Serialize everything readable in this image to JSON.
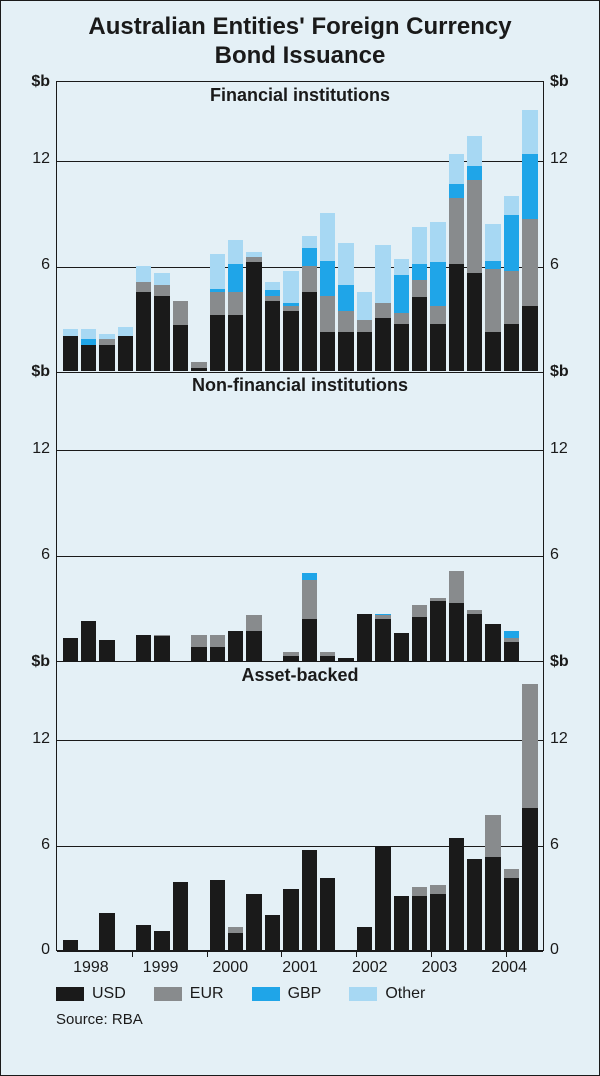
{
  "title_line1": "Australian Entities' Foreign Currency",
  "title_line2": "Bond Issuance",
  "title_fontsize": 24,
  "background": "#e4f0f6",
  "axis_color": "#1a1a1a",
  "series": {
    "usd": {
      "label": "USD",
      "color": "#1a1a1a"
    },
    "eur": {
      "label": "EUR",
      "color": "#888b8d"
    },
    "gbp": {
      "label": "GBP",
      "color": "#1fa5e8"
    },
    "other": {
      "label": "Other",
      "color": "#a7d8f3"
    }
  },
  "y_unit": "$b",
  "y_max": 16.5,
  "y_ticks": [
    6,
    12
  ],
  "x_year_labels": [
    "1998",
    "1999",
    "2000",
    "2001",
    "2002",
    "2003",
    "2004"
  ],
  "bottom_y_ticks": [
    0,
    6,
    12
  ],
  "panels": [
    {
      "title": "Financial institutions",
      "title_fontsize": 18,
      "has_bottom_axis": false,
      "bars": [
        {
          "usd": 2.0,
          "eur": 0.0,
          "gbp": 0.0,
          "other": 0.4
        },
        {
          "usd": 1.5,
          "eur": 0.0,
          "gbp": 0.3,
          "other": 0.6
        },
        {
          "usd": 1.5,
          "eur": 0.3,
          "gbp": 0.0,
          "other": 0.3
        },
        {
          "usd": 2.0,
          "eur": 0.0,
          "gbp": 0.0,
          "other": 0.5
        },
        {
          "usd": 4.5,
          "eur": 0.6,
          "gbp": 0.0,
          "other": 0.9
        },
        {
          "usd": 4.3,
          "eur": 0.6,
          "gbp": 0.0,
          "other": 0.7
        },
        {
          "usd": 2.6,
          "eur": 1.4,
          "gbp": 0.0,
          "other": 0.0
        },
        {
          "usd": 0.2,
          "eur": 0.3,
          "gbp": 0.0,
          "other": 0.0
        },
        {
          "usd": 3.2,
          "eur": 1.3,
          "gbp": 0.2,
          "other": 2.0
        },
        {
          "usd": 3.2,
          "eur": 1.3,
          "gbp": 1.6,
          "other": 1.4
        },
        {
          "usd": 6.2,
          "eur": 0.3,
          "gbp": 0.0,
          "other": 0.3
        },
        {
          "usd": 4.0,
          "eur": 0.3,
          "gbp": 0.3,
          "other": 0.5
        },
        {
          "usd": 3.4,
          "eur": 0.3,
          "gbp": 0.2,
          "other": 1.8
        },
        {
          "usd": 4.5,
          "eur": 1.5,
          "gbp": 1.0,
          "other": 0.7
        },
        {
          "usd": 2.2,
          "eur": 2.1,
          "gbp": 2.0,
          "other": 2.7
        },
        {
          "usd": 2.2,
          "eur": 1.2,
          "gbp": 1.5,
          "other": 2.4
        },
        {
          "usd": 2.2,
          "eur": 0.7,
          "gbp": 0.0,
          "other": 1.6
        },
        {
          "usd": 3.0,
          "eur": 0.9,
          "gbp": 0.0,
          "other": 3.3
        },
        {
          "usd": 2.7,
          "eur": 0.6,
          "gbp": 2.2,
          "other": 0.9
        },
        {
          "usd": 4.2,
          "eur": 1.0,
          "gbp": 0.9,
          "other": 2.1
        },
        {
          "usd": 2.7,
          "eur": 1.0,
          "gbp": 2.5,
          "other": 2.3
        },
        {
          "usd": 6.1,
          "eur": 3.8,
          "gbp": 0.8,
          "other": 1.7
        },
        {
          "usd": 5.6,
          "eur": 5.3,
          "gbp": 0.8,
          "other": 1.7
        },
        {
          "usd": 2.2,
          "eur": 3.6,
          "gbp": 0.5,
          "other": 2.1
        },
        {
          "usd": 2.7,
          "eur": 3.0,
          "gbp": 3.2,
          "other": 1.1
        },
        {
          "usd": 3.7,
          "eur": 5.0,
          "gbp": 3.7,
          "other": 2.5
        }
      ]
    },
    {
      "title": "Non-financial institutions",
      "title_fontsize": 18,
      "has_bottom_axis": false,
      "bars": [
        {
          "usd": 1.3,
          "eur": 0.0,
          "gbp": 0.0,
          "other": 0.0
        },
        {
          "usd": 2.3,
          "eur": 0.0,
          "gbp": 0.0,
          "other": 0.0
        },
        {
          "usd": 1.2,
          "eur": 0.0,
          "gbp": 0.0,
          "other": 0.0
        },
        {
          "usd": 0.0,
          "eur": 0.0,
          "gbp": 0.0,
          "other": 0.0
        },
        {
          "usd": 1.5,
          "eur": 0.0,
          "gbp": 0.0,
          "other": 0.0
        },
        {
          "usd": 1.4,
          "eur": 0.1,
          "gbp": 0.0,
          "other": 0.0
        },
        {
          "usd": 0.0,
          "eur": 0.0,
          "gbp": 0.0,
          "other": 0.0
        },
        {
          "usd": 0.8,
          "eur": 0.7,
          "gbp": 0.0,
          "other": 0.0
        },
        {
          "usd": 0.8,
          "eur": 0.7,
          "gbp": 0.0,
          "other": 0.0
        },
        {
          "usd": 1.7,
          "eur": 0.0,
          "gbp": 0.0,
          "other": 0.0
        },
        {
          "usd": 1.7,
          "eur": 0.9,
          "gbp": 0.0,
          "other": 0.0
        },
        {
          "usd": 0.0,
          "eur": 0.0,
          "gbp": 0.0,
          "other": 0.0
        },
        {
          "usd": 0.3,
          "eur": 0.2,
          "gbp": 0.0,
          "other": 0.0
        },
        {
          "usd": 2.4,
          "eur": 2.2,
          "gbp": 0.4,
          "other": 0.0
        },
        {
          "usd": 0.3,
          "eur": 0.2,
          "gbp": 0.0,
          "other": 0.0
        },
        {
          "usd": 0.2,
          "eur": 0.0,
          "gbp": 0.0,
          "other": 0.0
        },
        {
          "usd": 2.7,
          "eur": 0.0,
          "gbp": 0.0,
          "other": 0.0
        },
        {
          "usd": 2.4,
          "eur": 0.2,
          "gbp": 0.1,
          "other": 0.0
        },
        {
          "usd": 1.6,
          "eur": 0.0,
          "gbp": 0.0,
          "other": 0.0
        },
        {
          "usd": 2.5,
          "eur": 0.7,
          "gbp": 0.0,
          "other": 0.0
        },
        {
          "usd": 3.4,
          "eur": 0.2,
          "gbp": 0.0,
          "other": 0.0
        },
        {
          "usd": 3.3,
          "eur": 1.8,
          "gbp": 0.0,
          "other": 0.0
        },
        {
          "usd": 2.7,
          "eur": 0.2,
          "gbp": 0.0,
          "other": 0.0
        },
        {
          "usd": 2.1,
          "eur": 0.0,
          "gbp": 0.0,
          "other": 0.0
        },
        {
          "usd": 1.1,
          "eur": 0.2,
          "gbp": 0.4,
          "other": 0.0
        },
        {
          "usd": 0.0,
          "eur": 0.0,
          "gbp": 0.0,
          "other": 0.0
        }
      ]
    },
    {
      "title": "Asset-backed",
      "title_fontsize": 18,
      "has_bottom_axis": true,
      "bars": [
        {
          "usd": 0.6,
          "eur": 0.0,
          "gbp": 0.0,
          "other": 0.0
        },
        {
          "usd": 0.0,
          "eur": 0.0,
          "gbp": 0.0,
          "other": 0.0
        },
        {
          "usd": 2.1,
          "eur": 0.0,
          "gbp": 0.0,
          "other": 0.0
        },
        {
          "usd": 0.0,
          "eur": 0.0,
          "gbp": 0.0,
          "other": 0.0
        },
        {
          "usd": 1.4,
          "eur": 0.0,
          "gbp": 0.0,
          "other": 0.0
        },
        {
          "usd": 1.1,
          "eur": 0.0,
          "gbp": 0.0,
          "other": 0.0
        },
        {
          "usd": 3.9,
          "eur": 0.0,
          "gbp": 0.0,
          "other": 0.0
        },
        {
          "usd": 0.0,
          "eur": 0.0,
          "gbp": 0.0,
          "other": 0.0
        },
        {
          "usd": 4.0,
          "eur": 0.0,
          "gbp": 0.0,
          "other": 0.0
        },
        {
          "usd": 1.0,
          "eur": 0.3,
          "gbp": 0.0,
          "other": 0.0
        },
        {
          "usd": 3.2,
          "eur": 0.0,
          "gbp": 0.0,
          "other": 0.0
        },
        {
          "usd": 2.0,
          "eur": 0.0,
          "gbp": 0.0,
          "other": 0.0
        },
        {
          "usd": 3.5,
          "eur": 0.0,
          "gbp": 0.0,
          "other": 0.0
        },
        {
          "usd": 5.7,
          "eur": 0.0,
          "gbp": 0.0,
          "other": 0.0
        },
        {
          "usd": 4.1,
          "eur": 0.0,
          "gbp": 0.0,
          "other": 0.0
        },
        {
          "usd": 0.0,
          "eur": 0.0,
          "gbp": 0.0,
          "other": 0.0
        },
        {
          "usd": 1.3,
          "eur": 0.0,
          "gbp": 0.0,
          "other": 0.0
        },
        {
          "usd": 5.9,
          "eur": 0.0,
          "gbp": 0.0,
          "other": 0.0
        },
        {
          "usd": 3.1,
          "eur": 0.0,
          "gbp": 0.0,
          "other": 0.0
        },
        {
          "usd": 3.1,
          "eur": 0.5,
          "gbp": 0.0,
          "other": 0.0
        },
        {
          "usd": 3.2,
          "eur": 0.5,
          "gbp": 0.0,
          "other": 0.0
        },
        {
          "usd": 6.4,
          "eur": 0.0,
          "gbp": 0.0,
          "other": 0.0
        },
        {
          "usd": 5.2,
          "eur": 0.0,
          "gbp": 0.0,
          "other": 0.0
        },
        {
          "usd": 5.3,
          "eur": 2.4,
          "gbp": 0.0,
          "other": 0.0
        },
        {
          "usd": 4.1,
          "eur": 0.5,
          "gbp": 0.0,
          "other": 0.0
        },
        {
          "usd": 8.1,
          "eur": 7.1,
          "gbp": 0.0,
          "other": 0.0
        }
      ]
    }
  ],
  "source_text": "Source: RBA"
}
